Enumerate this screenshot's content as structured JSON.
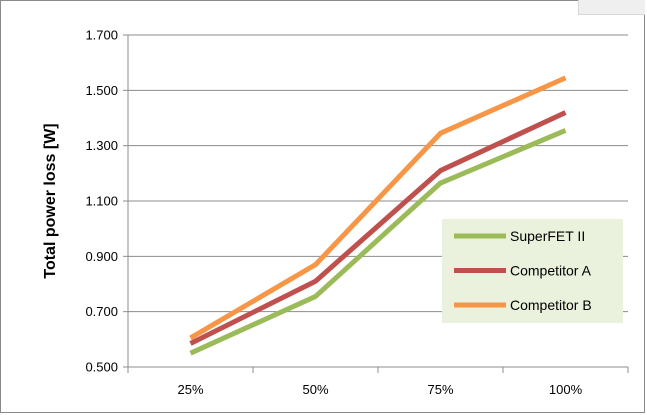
{
  "chart_data": {
    "type": "line",
    "title": "",
    "xlabel": "",
    "ylabel": "Total power loss [W]",
    "categories": [
      "25%",
      "50%",
      "75%",
      "100%"
    ],
    "ylim": [
      0.5,
      1.7
    ],
    "yticks": [
      0.5,
      0.7,
      0.9,
      1.1,
      1.3,
      1.5,
      1.7
    ],
    "ytick_labels": [
      "0.500",
      "0.700",
      "0.900",
      "1.100",
      "1.300",
      "1.500",
      "1.700"
    ],
    "grid": true,
    "legend_position": "right",
    "series": [
      {
        "name": "SuperFET II",
        "color": "#9bbb59",
        "values": [
          0.55,
          0.755,
          1.165,
          1.355
        ]
      },
      {
        "name": "Competitor A",
        "color": "#c0504d",
        "values": [
          0.585,
          0.81,
          1.21,
          1.42
        ]
      },
      {
        "name": "Competitor B",
        "color": "#f79646",
        "values": [
          0.605,
          0.87,
          1.345,
          1.545
        ]
      }
    ]
  }
}
